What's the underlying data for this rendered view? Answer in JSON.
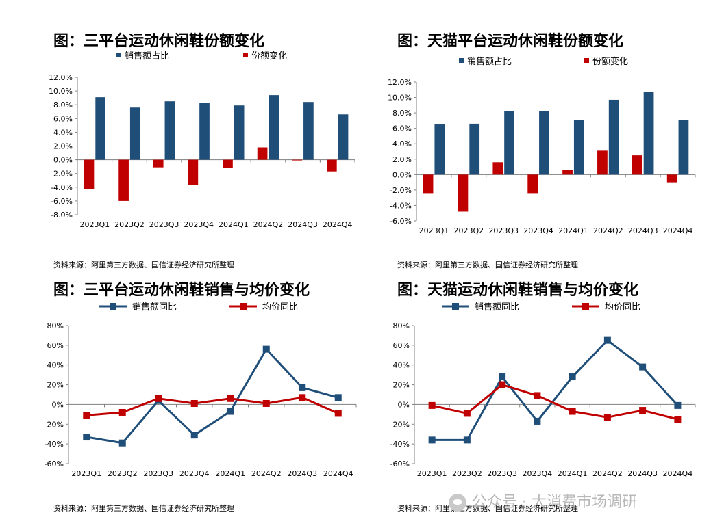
{
  "panels": [
    {
      "title": "图：三平台运动休闲鞋份额变化",
      "source": "资料来源：阿里第三方数据、国信证券经济研究所整理"
    },
    {
      "title": "图：天猫平台运动休闲鞋份额变化",
      "source": "资料来源：阿里第三方数据、国信证券经济研究所整理"
    },
    {
      "title": "图：三平台运动休闲鞋销售与均价变化",
      "source": "资料来源：阿里第三方数据、国信证券经济研究所整理"
    },
    {
      "title": "图：天猫运动休闲鞋销售与均价变化",
      "source": "资料来源：阿里第三方数据、国信证券经济研究所整理"
    }
  ],
  "watermark": "公众号 · 大消费市场调研",
  "colors": {
    "navy": "#1f4e79",
    "red": "#c00000",
    "axis": "#7f7f7f"
  },
  "chart_data": [
    {
      "type": "bar",
      "title": "图：三平台运动休闲鞋份额变化",
      "categories": [
        "2023Q1",
        "2023Q2",
        "2023Q3",
        "2023Q4",
        "2024Q1",
        "2024Q2",
        "2024Q3",
        "2024Q4"
      ],
      "series": [
        {
          "name": "销售额占比",
          "color": "#1f4e79",
          "values": [
            9.1,
            7.6,
            8.5,
            8.3,
            7.9,
            9.4,
            8.4,
            6.6
          ]
        },
        {
          "name": "份额变化",
          "color": "#c00000",
          "values": [
            -4.3,
            -6.0,
            -1.1,
            -3.7,
            -1.2,
            1.8,
            -0.1,
            -1.7
          ]
        }
      ],
      "ylim": [
        -8,
        12
      ],
      "yticks": [
        12,
        10,
        8,
        6,
        4,
        2,
        0,
        -2,
        -4,
        -6,
        -8
      ],
      "ytick_labels": [
        "12.0%",
        "10.0%",
        "8.0%",
        "6.0%",
        "4.0%",
        "2.0%",
        "0.0%",
        "-2.0%",
        "-4.0%",
        "-6.0%",
        "-8.0%"
      ]
    },
    {
      "type": "bar",
      "title": "图：天猫平台运动休闲鞋份额变化",
      "categories": [
        "2023Q1",
        "2023Q2",
        "2023Q3",
        "2023Q4",
        "2024Q1",
        "2024Q2",
        "2024Q3",
        "2024Q4"
      ],
      "series": [
        {
          "name": "销售额占比",
          "color": "#1f4e79",
          "values": [
            6.5,
            6.6,
            8.2,
            8.2,
            7.1,
            9.7,
            10.7,
            7.1
          ]
        },
        {
          "name": "份额变化",
          "color": "#c00000",
          "values": [
            -2.4,
            -4.8,
            1.6,
            -2.4,
            0.6,
            3.1,
            2.5,
            -1.0
          ]
        }
      ],
      "ylim": [
        -6,
        12
      ],
      "yticks": [
        12,
        10,
        8,
        6,
        4,
        2,
        0,
        -2,
        -4,
        -6
      ],
      "ytick_labels": [
        "12.0%",
        "10.0%",
        "8.0%",
        "6.0%",
        "4.0%",
        "2.0%",
        "0.0%",
        "-2.0%",
        "-4.0%",
        "-6.0%"
      ]
    },
    {
      "type": "line",
      "title": "图：三平台运动休闲鞋销售与均价变化",
      "categories": [
        "2023Q1",
        "2023Q2",
        "2023Q3",
        "2023Q4",
        "2024Q1",
        "2024Q2",
        "2024Q3",
        "2024Q4"
      ],
      "series": [
        {
          "name": "销售额同比",
          "color": "#1f4e79",
          "values": [
            -33,
            -39,
            4,
            -31,
            -7,
            56,
            17,
            7
          ]
        },
        {
          "name": "均价同比",
          "color": "#c00000",
          "values": [
            -11,
            -8,
            6,
            1,
            6,
            1,
            7,
            -9
          ]
        }
      ],
      "ylim": [
        -60,
        80
      ],
      "yticks": [
        80,
        60,
        40,
        20,
        0,
        -20,
        -40,
        -60
      ],
      "ytick_labels": [
        "80%",
        "60%",
        "40%",
        "20%",
        "0%",
        "-20%",
        "-40%",
        "-60%"
      ]
    },
    {
      "type": "line",
      "title": "图：天猫运动休闲鞋销售与均价变化",
      "categories": [
        "2023Q1",
        "2023Q2",
        "2023Q3",
        "2023Q4",
        "2024Q1",
        "2024Q2",
        "2024Q3",
        "2024Q4"
      ],
      "series": [
        {
          "name": "销售额同比",
          "color": "#1f4e79",
          "values": [
            -36,
            -36,
            28,
            -17,
            28,
            65,
            38,
            -1
          ]
        },
        {
          "name": "均价同比",
          "color": "#c00000",
          "values": [
            -1,
            -9,
            20,
            9,
            -7,
            -13,
            -6,
            -15
          ]
        }
      ],
      "ylim": [
        -60,
        80
      ],
      "yticks": [
        80,
        60,
        40,
        20,
        0,
        -20,
        -40,
        -60
      ],
      "ytick_labels": [
        "80%",
        "60%",
        "40%",
        "20%",
        "0%",
        "-20%",
        "-40%",
        "-60%"
      ]
    }
  ]
}
